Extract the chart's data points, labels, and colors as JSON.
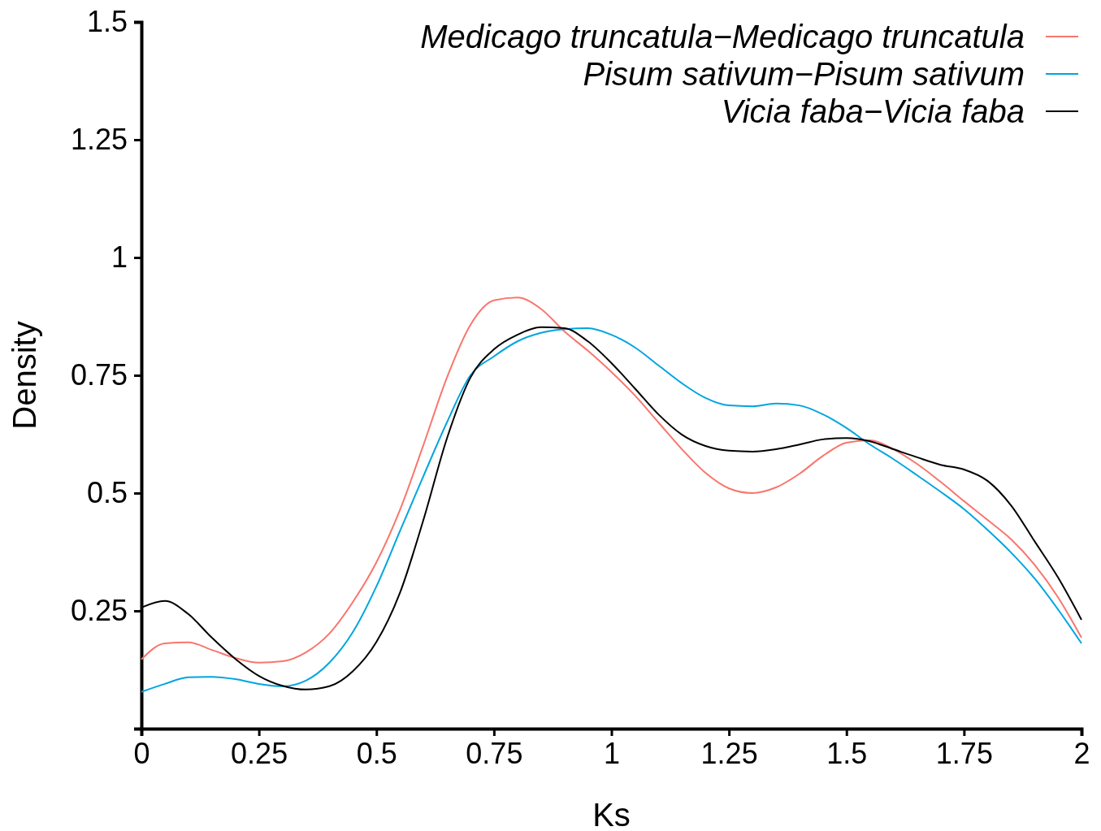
{
  "chart_data": {
    "type": "line",
    "xlabel": "Ks",
    "ylabel": "Density",
    "x": [
      0,
      0.05,
      0.1,
      0.15,
      0.2,
      0.25,
      0.3,
      0.35,
      0.4,
      0.45,
      0.5,
      0.55,
      0.6,
      0.65,
      0.7,
      0.75,
      0.8,
      0.85,
      0.9,
      0.95,
      1,
      1.05,
      1.1,
      1.15,
      1.2,
      1.25,
      1.3,
      1.35,
      1.4,
      1.45,
      1.5,
      1.55,
      1.6,
      1.65,
      1.7,
      1.75,
      1.8,
      1.85,
      1.9,
      1.95,
      2
    ],
    "series": [
      {
        "name": "Medicago truncatula−Medicago truncatula",
        "color": "#f8766d",
        "values": [
          0.147,
          0.181,
          0.183,
          0.167,
          0.15,
          0.14,
          0.143,
          0.162,
          0.202,
          0.269,
          0.353,
          0.464,
          0.602,
          0.745,
          0.857,
          0.909,
          0.915,
          0.891,
          0.843,
          0.802,
          0.757,
          0.707,
          0.65,
          0.593,
          0.543,
          0.51,
          0.5,
          0.512,
          0.541,
          0.579,
          0.607,
          0.612,
          0.593,
          0.562,
          0.524,
          0.483,
          0.443,
          0.402,
          0.348,
          0.279,
          0.193
        ]
      },
      {
        "name": "Pisum sativum−Pisum sativum",
        "color": "#00a5e0",
        "values": [
          0.078,
          0.095,
          0.109,
          0.11,
          0.105,
          0.095,
          0.09,
          0.102,
          0.14,
          0.205,
          0.302,
          0.419,
          0.536,
          0.65,
          0.75,
          0.79,
          0.822,
          0.84,
          0.848,
          0.85,
          0.836,
          0.809,
          0.771,
          0.733,
          0.702,
          0.686,
          0.684,
          0.69,
          0.686,
          0.667,
          0.638,
          0.603,
          0.572,
          0.538,
          0.503,
          0.466,
          0.422,
          0.374,
          0.319,
          0.253,
          0.181
        ]
      },
      {
        "name": "Vicia faba−Vicia faba",
        "color": "#000000",
        "values": [
          0.257,
          0.271,
          0.243,
          0.193,
          0.148,
          0.112,
          0.091,
          0.083,
          0.09,
          0.122,
          0.184,
          0.288,
          0.443,
          0.616,
          0.745,
          0.805,
          0.836,
          0.852,
          0.85,
          0.822,
          0.776,
          0.722,
          0.667,
          0.624,
          0.6,
          0.59,
          0.588,
          0.593,
          0.603,
          0.614,
          0.617,
          0.61,
          0.593,
          0.576,
          0.56,
          0.55,
          0.526,
          0.474,
          0.398,
          0.321,
          0.231
        ]
      }
    ],
    "xlim": [
      0,
      2
    ],
    "xticks": [
      0,
      0.25,
      0.5,
      0.75,
      1,
      1.25,
      1.5,
      1.75,
      2
    ],
    "ylim": [
      0,
      1.5
    ],
    "yticks": [
      0.25,
      0.5,
      0.75,
      1,
      1.25,
      1.5
    ],
    "grid": false,
    "legend": "top right",
    "line_style": "solid",
    "marker": "none"
  }
}
